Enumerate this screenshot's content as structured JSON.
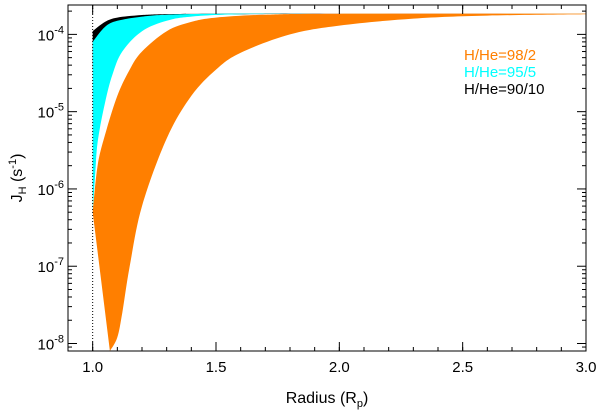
{
  "chart_data": {
    "type": "area",
    "title": "",
    "xlabel": {
      "main": "Radius (R",
      "sub": "p",
      "tail": ")"
    },
    "ylabel": {
      "main": "J",
      "sub": "H",
      "mid": " (s",
      "sup": "-1",
      "tail": ")"
    },
    "x_scale": "linear",
    "y_scale": "log",
    "xlim": [
      0.9,
      3.0
    ],
    "ylim": [
      8e-09,
      0.00024
    ],
    "x_ticks": [
      {
        "value": 1.0,
        "label": "1.0"
      },
      {
        "value": 1.5,
        "label": "1.5"
      },
      {
        "value": 2.0,
        "label": "2.0"
      },
      {
        "value": 2.5,
        "label": "2.5"
      },
      {
        "value": 3.0,
        "label": "3.0"
      }
    ],
    "y_ticks": [
      {
        "value": 1e-08,
        "base": "10",
        "exp": "-8"
      },
      {
        "value": 1e-07,
        "base": "10",
        "exp": "-7"
      },
      {
        "value": 1e-06,
        "base": "10",
        "exp": "-6"
      },
      {
        "value": 1e-05,
        "base": "10",
        "exp": "-5"
      },
      {
        "value": 0.0001,
        "base": "10",
        "exp": "-4"
      }
    ],
    "reference_line": {
      "x": 1.0,
      "style": "dotted"
    },
    "legend_position": "top-right",
    "series": [
      {
        "name": "H/He=90/10",
        "color": "#000000",
        "upper": [
          [
            1.0,
            0.00011
          ],
          [
            1.05,
            0.000145
          ],
          [
            1.1,
            0.000165
          ],
          [
            1.2,
            0.000178
          ],
          [
            1.3,
            0.000183
          ],
          [
            1.5,
            0.000185
          ],
          [
            2.0,
            0.000186
          ],
          [
            3.0,
            0.000186
          ]
        ],
        "lower": [
          [
            1.0,
            3.5e-05
          ],
          [
            1.05,
            7e-05
          ],
          [
            1.1,
            0.0001
          ],
          [
            1.15,
            0.000125
          ],
          [
            1.2,
            0.000145
          ],
          [
            1.3,
            0.000165
          ],
          [
            1.5,
            0.00018
          ],
          [
            2.0,
            0.000185
          ],
          [
            3.0,
            0.000186
          ]
        ]
      },
      {
        "name": "H/He=95/5",
        "color": "#00ffff",
        "upper": [
          [
            1.0,
            8e-05
          ],
          [
            1.05,
            0.000125
          ],
          [
            1.1,
            0.00015
          ],
          [
            1.2,
            0.00017
          ],
          [
            1.3,
            0.00018
          ],
          [
            1.5,
            0.000185
          ],
          [
            2.0,
            0.000186
          ],
          [
            3.0,
            0.000186
          ]
        ],
        "lower": [
          [
            1.0,
            5e-07
          ],
          [
            1.01,
            1.5e-06
          ],
          [
            1.02,
            4e-06
          ],
          [
            1.05,
            1.3e-05
          ],
          [
            1.08,
            3e-05
          ],
          [
            1.12,
            6e-05
          ],
          [
            1.2,
            0.00011
          ],
          [
            1.3,
            0.00015
          ],
          [
            1.4,
            0.00017
          ],
          [
            1.6,
            0.000182
          ],
          [
            2.0,
            0.000186
          ],
          [
            3.0,
            0.000186
          ]
        ]
      },
      {
        "name": "H/He=98/2",
        "color": "#ff7f00",
        "upper": [
          [
            1.0,
            5e-07
          ],
          [
            1.02,
            2e-06
          ],
          [
            1.05,
            5e-06
          ],
          [
            1.1,
            1.6e-05
          ],
          [
            1.15,
            3.5e-05
          ],
          [
            1.2,
            6e-05
          ],
          [
            1.3,
            0.00011
          ],
          [
            1.4,
            0.000145
          ],
          [
            1.5,
            0.000165
          ],
          [
            1.7,
            0.00018
          ],
          [
            2.0,
            0.000185
          ],
          [
            3.0,
            0.000186
          ]
        ],
        "lower": [
          [
            1.07,
            8e-09
          ],
          [
            1.1,
            1.2e-08
          ],
          [
            1.12,
            2.5e-08
          ],
          [
            1.15,
            1e-07
          ],
          [
            1.2,
            6e-07
          ],
          [
            1.3,
            4.5e-06
          ],
          [
            1.4,
            1.6e-05
          ],
          [
            1.5,
            3.5e-05
          ],
          [
            1.6,
            5.8e-05
          ],
          [
            1.8,
            0.0001
          ],
          [
            2.0,
            0.00013
          ],
          [
            2.3,
            0.00016
          ],
          [
            2.6,
            0.000175
          ],
          [
            3.0,
            0.000182
          ]
        ]
      }
    ],
    "legend": [
      {
        "label": "H/He=98/2",
        "color": "#ff7f00"
      },
      {
        "label": "H/He=95/5",
        "color": "#00ffff"
      },
      {
        "label": "H/He=90/10",
        "color": "#000000"
      }
    ]
  }
}
